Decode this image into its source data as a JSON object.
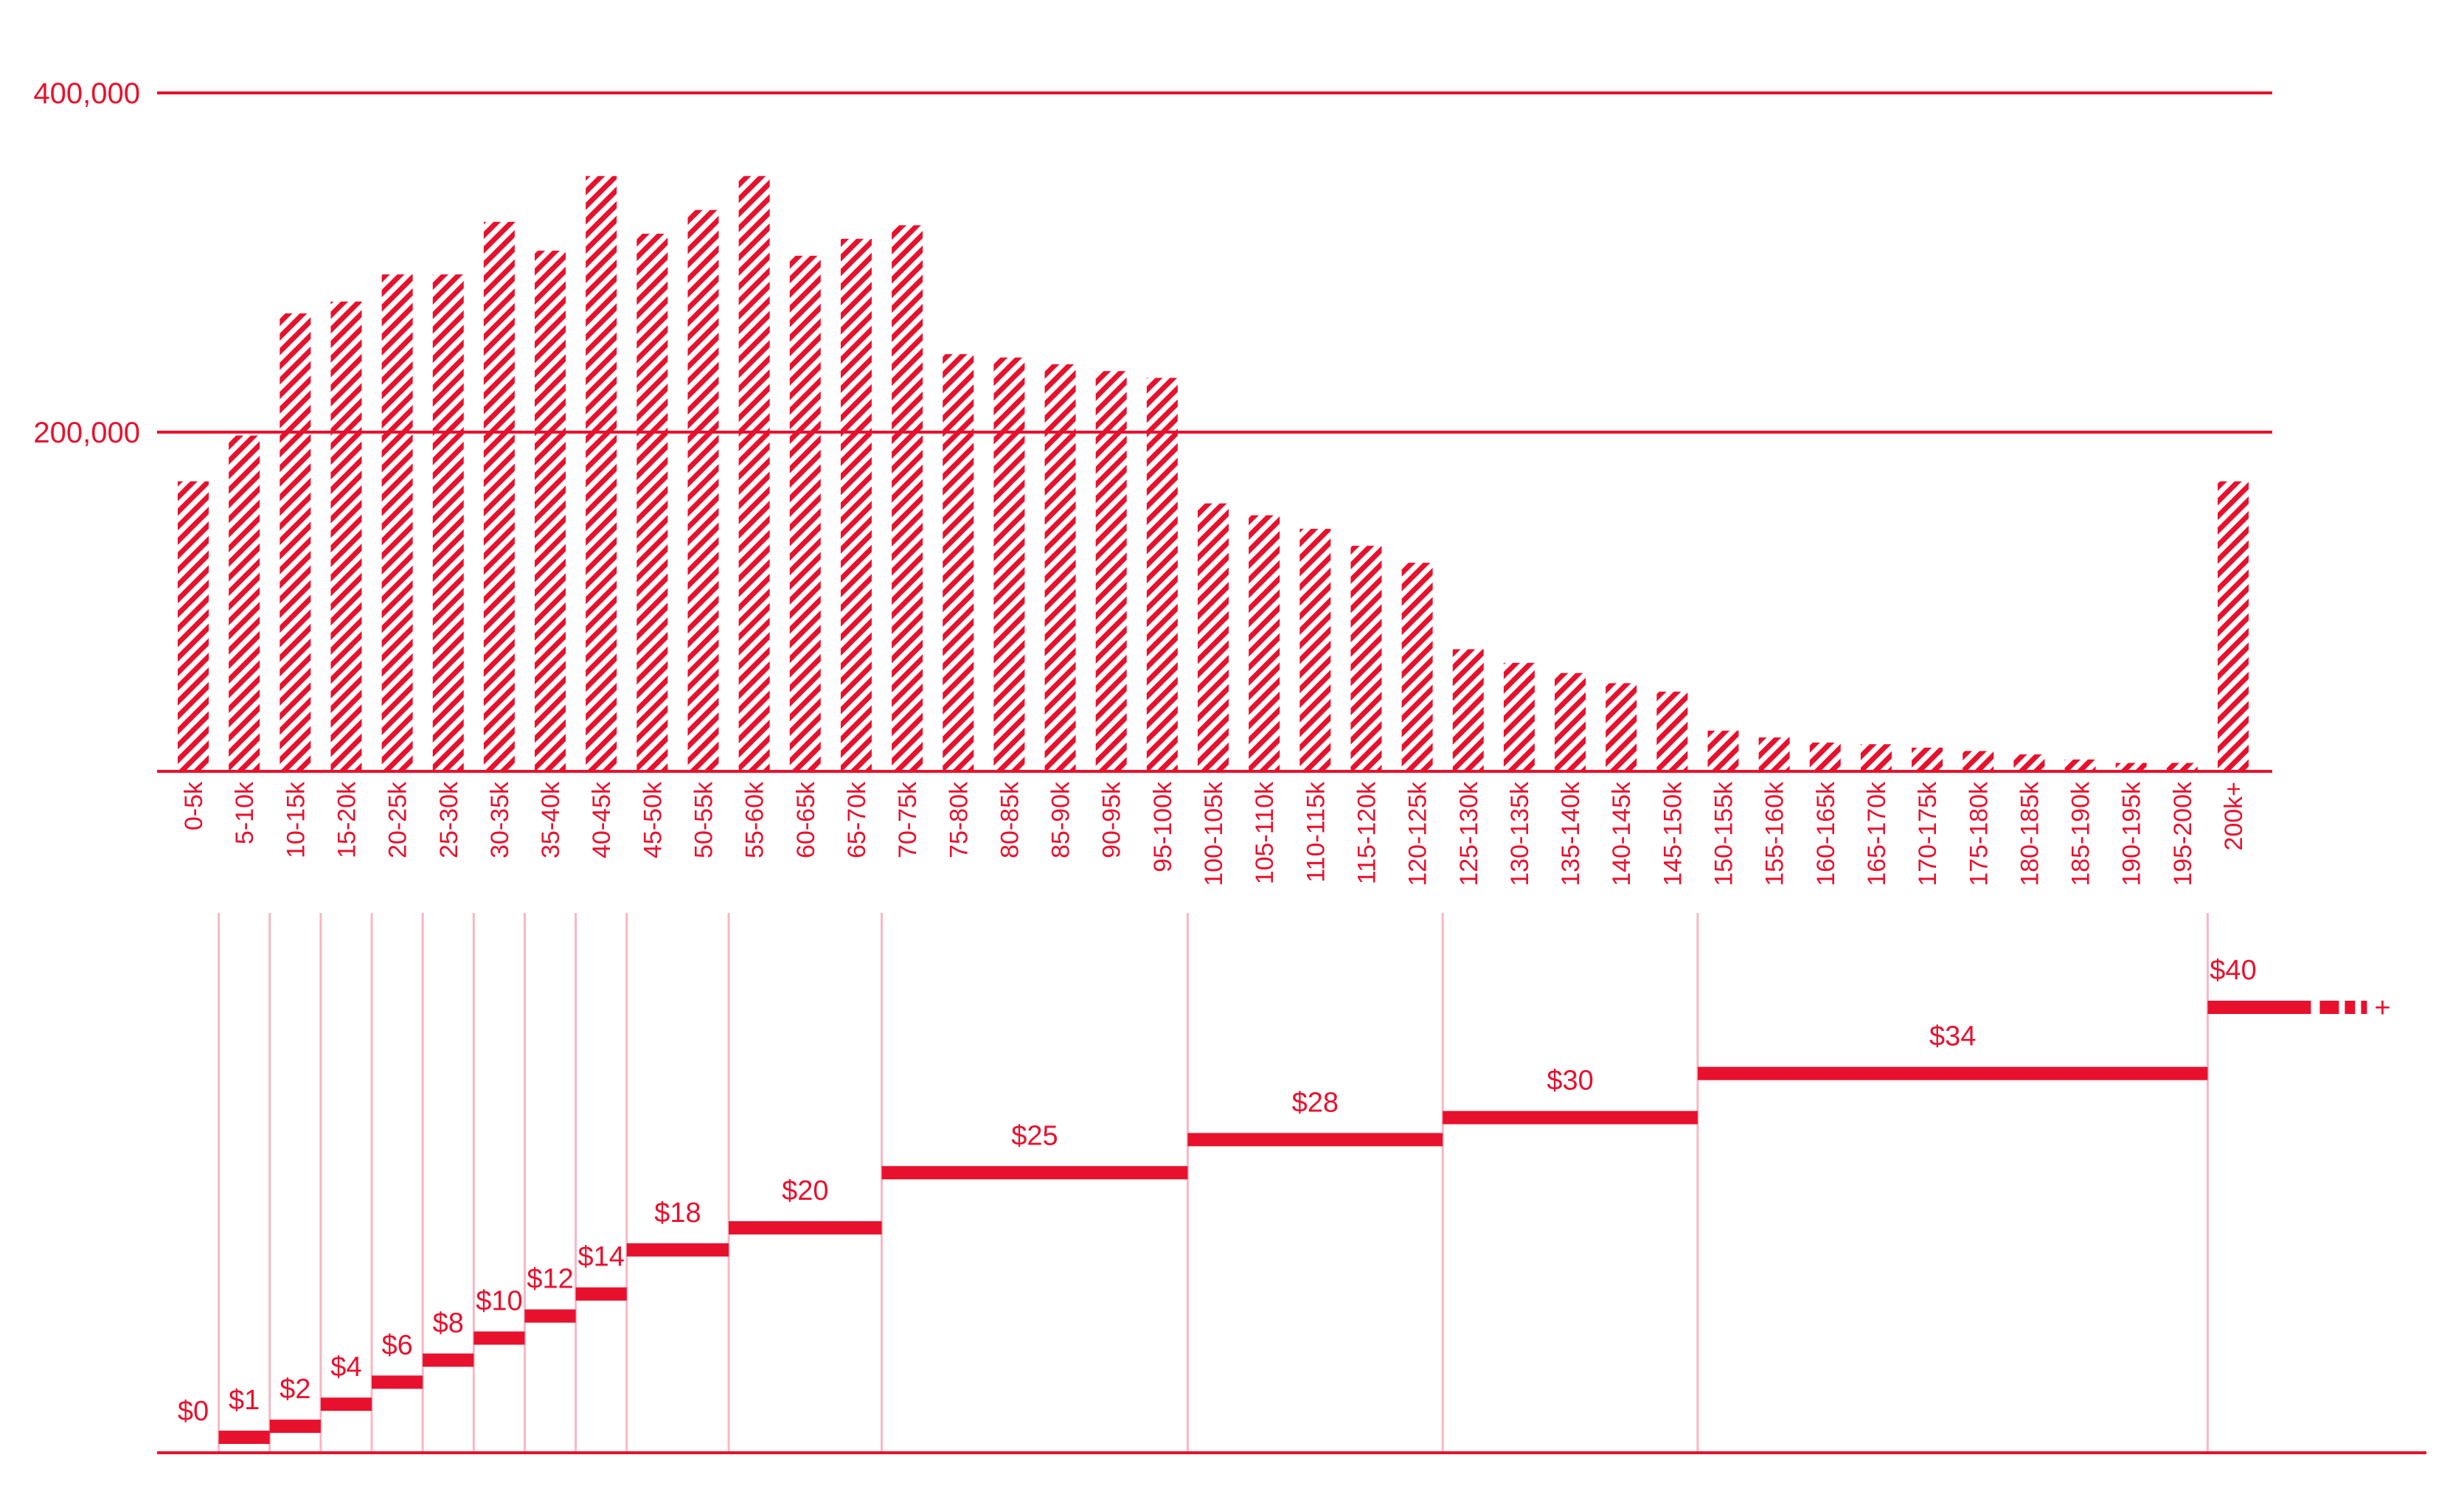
{
  "colors": {
    "accent": "#e8112d",
    "divider": "#f5b8c4",
    "background": "#ffffff"
  },
  "chart_data": [
    {
      "type": "bar",
      "bar_fill": "diagonal-hatch",
      "categories": [
        "0-5k",
        "5-10k",
        "10-15k",
        "15-20k",
        "20-25k",
        "25-30k",
        "30-35k",
        "35-40k",
        "40-45k",
        "45-50k",
        "50-55k",
        "55-60k",
        "60-65k",
        "65-70k",
        "70-75k",
        "75-80k",
        "80-85k",
        "85-90k",
        "90-95k",
        "95-100k",
        "100-105k",
        "105-110k",
        "110-115k",
        "115-120k",
        "120-125k",
        "125-130k",
        "130-135k",
        "135-140k",
        "140-145k",
        "145-150k",
        "150-155k",
        "155-160k",
        "160-165k",
        "165-170k",
        "170-175k",
        "175-180k",
        "180-185k",
        "185-190k",
        "190-195k",
        "195-200k",
        "200k+"
      ],
      "values": [
        171000,
        198000,
        270000,
        277000,
        293000,
        293000,
        324000,
        307000,
        351000,
        317000,
        331000,
        351000,
        304000,
        314000,
        322000,
        246000,
        244000,
        240000,
        236000,
        232000,
        158000,
        151000,
        143000,
        133000,
        123000,
        72000,
        64000,
        58000,
        52000,
        47000,
        24000,
        20000,
        17000,
        16000,
        14000,
        12000,
        10000,
        7000,
        5000,
        5000,
        171000
      ],
      "yticks": [
        {
          "value": 200000,
          "label": "200,000"
        },
        {
          "value": 400000,
          "label": "400,000"
        }
      ],
      "ylim": [
        0,
        400000
      ],
      "grid": true
    },
    {
      "type": "step",
      "steps": [
        {
          "label": "$0",
          "value": 0,
          "from": "0-5k",
          "to": "0-5k"
        },
        {
          "label": "$1",
          "value": 1,
          "from": "5-10k",
          "to": "5-10k"
        },
        {
          "label": "$2",
          "value": 2,
          "from": "10-15k",
          "to": "10-15k"
        },
        {
          "label": "$4",
          "value": 4,
          "from": "15-20k",
          "to": "15-20k"
        },
        {
          "label": "$6",
          "value": 6,
          "from": "20-25k",
          "to": "20-25k"
        },
        {
          "label": "$8",
          "value": 8,
          "from": "25-30k",
          "to": "25-30k"
        },
        {
          "label": "$10",
          "value": 10,
          "from": "30-35k",
          "to": "30-35k"
        },
        {
          "label": "$12",
          "value": 12,
          "from": "35-40k",
          "to": "35-40k"
        },
        {
          "label": "$14",
          "value": 14,
          "from": "40-45k",
          "to": "40-45k"
        },
        {
          "label": "$18",
          "value": 18,
          "from": "45-50k",
          "to": "50-55k"
        },
        {
          "label": "$20",
          "value": 20,
          "from": "55-60k",
          "to": "65-70k"
        },
        {
          "label": "$25",
          "value": 25,
          "from": "70-75k",
          "to": "95-100k"
        },
        {
          "label": "$28",
          "value": 28,
          "from": "100-105k",
          "to": "120-125k"
        },
        {
          "label": "$30",
          "value": 30,
          "from": "125-130k",
          "to": "145-150k"
        },
        {
          "label": "$34",
          "value": 34,
          "from": "150-155k",
          "to": "195-200k"
        },
        {
          "label": "$40",
          "value": 40,
          "from": "200k+",
          "to": "200k+",
          "open_ended": true,
          "suffix": "+"
        }
      ],
      "ylim": [
        0,
        40
      ]
    }
  ]
}
